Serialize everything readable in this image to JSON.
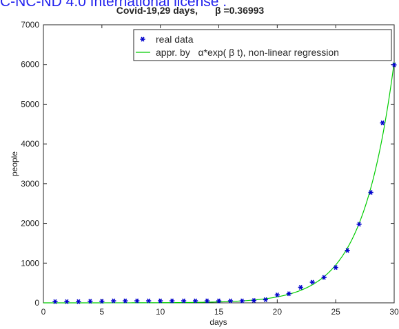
{
  "banner_text": "C-NC-ND 4.0 International license .",
  "chart_data": {
    "type": "scatter",
    "title": "Covid-19,29 days,",
    "title_beta": "β =0.36993",
    "xlabel": "days",
    "ylabel": "people",
    "xlim": [
      0,
      30
    ],
    "ylim": [
      0,
      7000
    ],
    "xticks": [
      0,
      5,
      10,
      15,
      20,
      25,
      30
    ],
    "yticks": [
      0,
      1000,
      2000,
      3000,
      4000,
      5000,
      6000,
      7000
    ],
    "grid": false,
    "legend_position": "top-right",
    "legend": [
      {
        "label": "real data",
        "marker": "asterisk",
        "color": "#0000cc"
      },
      {
        "label": "appr. by   α*exp( β t), non-linear regression",
        "marker": "line",
        "color": "#00cc00"
      }
    ],
    "series": [
      {
        "name": "real data",
        "kind": "scatter",
        "color": "#0000cc",
        "x": [
          1,
          2,
          3,
          4,
          5,
          6,
          7,
          8,
          9,
          10,
          11,
          12,
          13,
          14,
          15,
          16,
          17,
          18,
          19,
          20,
          21,
          22,
          23,
          24,
          25,
          26,
          27,
          28,
          29,
          30
        ],
        "y": [
          30,
          30,
          30,
          40,
          40,
          50,
          50,
          50,
          50,
          50,
          50,
          50,
          50,
          50,
          50,
          50,
          50,
          60,
          80,
          200,
          230,
          390,
          520,
          640,
          890,
          1320,
          1980,
          2780,
          4530,
          5990
        ]
      },
      {
        "name": "appr. by α*exp(β t), non-linear regression",
        "kind": "line",
        "color": "#00cc00",
        "alpha": 0.0918,
        "beta": 0.36993
      }
    ]
  }
}
